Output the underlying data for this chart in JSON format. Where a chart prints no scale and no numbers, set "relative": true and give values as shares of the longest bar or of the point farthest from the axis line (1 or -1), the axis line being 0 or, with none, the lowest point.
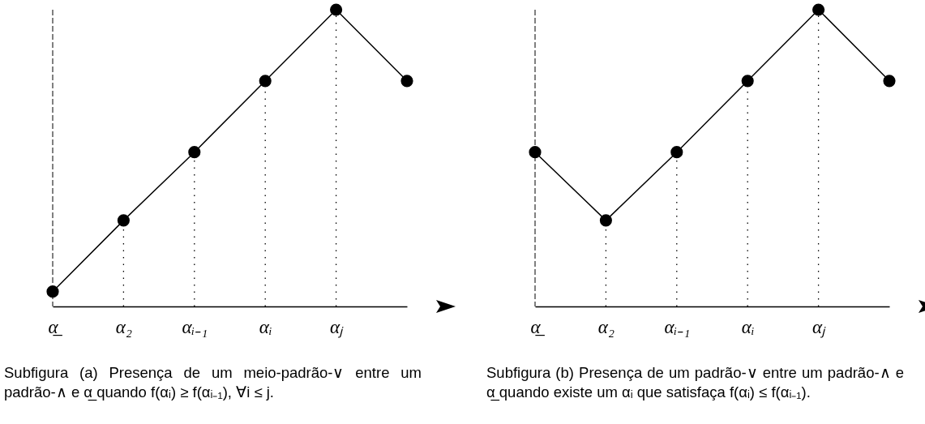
{
  "chart_data": [
    {
      "type": "line",
      "relative": true,
      "categories": [
        "α̲",
        "α₂",
        "αᵢ₋₁",
        "αᵢ",
        "αⱼ",
        null
      ],
      "marker": "circle",
      "line_style": "solid",
      "series": [
        {
          "color": "#000000",
          "values": [
            0.05,
            0.29,
            0.52,
            0.76,
            1,
            0.76
          ]
        }
      ],
      "ref_lines": [
        {
          "axis": "x",
          "value": "α̲",
          "line_style": "dashed"
        },
        {
          "axis": "x",
          "value": "α₂",
          "line_style": "dotted"
        },
        {
          "axis": "x",
          "value": "αᵢ₋₁",
          "line_style": "dotted"
        },
        {
          "axis": "x",
          "value": "αᵢ",
          "line_style": "dotted"
        },
        {
          "axis": "x",
          "value": "αⱼ",
          "line_style": "dotted"
        }
      ],
      "annotations": [
        "Subfigura (a) Presença de um meio-padrão-∨ entre um padrão-∧ e α̲ quando f(αᵢ) ≥ f(αᵢ₋₁), ∀i ≤ j."
      ]
    },
    {
      "type": "line",
      "relative": true,
      "categories": [
        "α̲",
        "α₂",
        "αᵢ₋₁",
        "αᵢ",
        "αⱼ",
        null
      ],
      "marker": "circle",
      "line_style": "solid",
      "series": [
        {
          "color": "#000000",
          "values": [
            0.52,
            0.29,
            0.52,
            0.76,
            1,
            0.76
          ]
        }
      ],
      "ref_lines": [
        {
          "axis": "x",
          "value": "α̲",
          "line_style": "dashed"
        },
        {
          "axis": "x",
          "value": "α₂",
          "line_style": "dotted"
        },
        {
          "axis": "x",
          "value": "αᵢ₋₁",
          "line_style": "dotted"
        },
        {
          "axis": "x",
          "value": "αᵢ",
          "line_style": "dotted"
        },
        {
          "axis": "x",
          "value": "αⱼ",
          "line_style": "dotted"
        }
      ],
      "annotations": [
        "Subfigura (b) Presença de um padrão-∨ entre um padrão-∧ e α̲ quando existe um αᵢ que satisfaça f(αᵢ) ≤ f(αᵢ₋₁)."
      ]
    }
  ]
}
